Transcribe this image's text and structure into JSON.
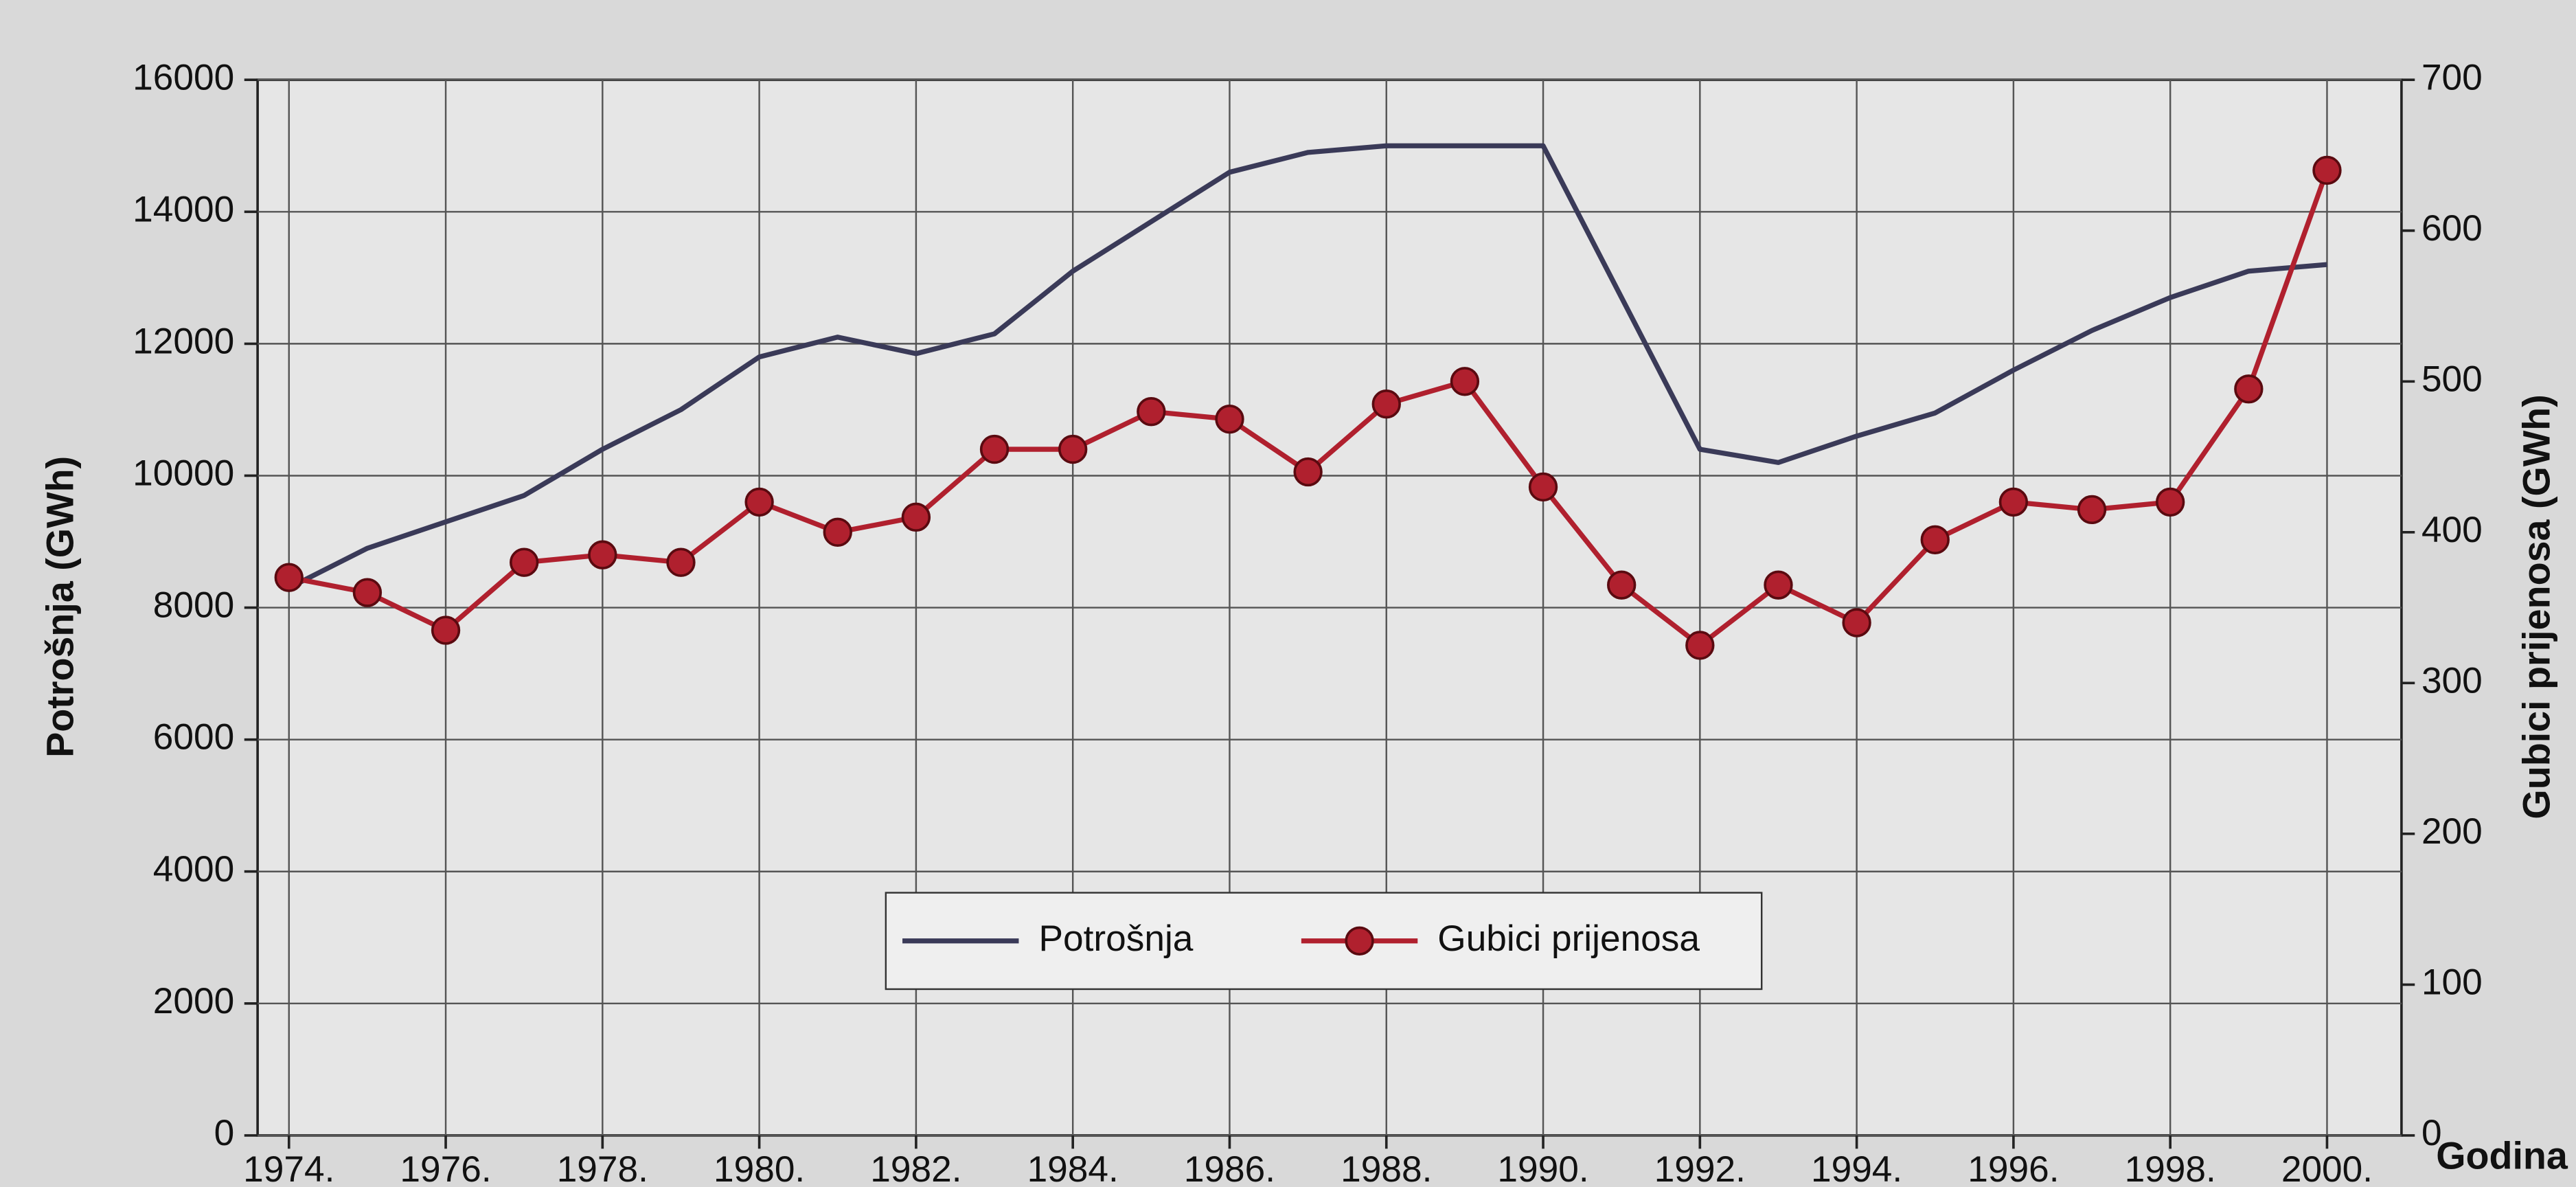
{
  "chart_data": {
    "type": "line",
    "x": [
      1974,
      1975,
      1976,
      1977,
      1978,
      1979,
      1980,
      1981,
      1982,
      1983,
      1984,
      1985,
      1986,
      1987,
      1988,
      1989,
      1990,
      1991,
      1992,
      1993,
      1994,
      1995,
      1996,
      1997,
      1998,
      1999,
      2000
    ],
    "series": [
      {
        "name": "Potrošnja",
        "color": "#3a3a58",
        "marker": false,
        "values": [
          8300,
          8900,
          9300,
          9700,
          10400,
          11000,
          11800,
          12100,
          11850,
          12150,
          13100,
          13850,
          14600,
          14900,
          15000,
          15000,
          15000,
          12700,
          10400,
          10200,
          10600,
          10950,
          11600,
          12200,
          12700,
          13100,
          13200
        ]
      },
      {
        "name": "Gubici prijenosa",
        "color": "#b0202e",
        "marker": true,
        "axis": "y2",
        "values": [
          370,
          360,
          335,
          380,
          385,
          380,
          420,
          400,
          410,
          455,
          455,
          480,
          475,
          440,
          485,
          500,
          430,
          365,
          325,
          365,
          340,
          395,
          420,
          415,
          420,
          495,
          640
        ]
      }
    ],
    "xlabel": "Godina",
    "ylabel": "Potrošnja (GWh)",
    "y2label": "Gubici prijenosa (GWh)",
    "xlim": [
      1973.6,
      2000.95
    ],
    "xticks": [
      {
        "value": 1974,
        "label": "1974."
      },
      {
        "value": 1976,
        "label": "1976."
      },
      {
        "value": 1978,
        "label": "1978."
      },
      {
        "value": 1980,
        "label": "1980."
      },
      {
        "value": 1982,
        "label": "1982."
      },
      {
        "value": 1984,
        "label": "1984."
      },
      {
        "value": 1986,
        "label": "1986."
      },
      {
        "value": 1988,
        "label": "1988."
      },
      {
        "value": 1990,
        "label": "1990."
      },
      {
        "value": 1992,
        "label": "1992."
      },
      {
        "value": 1994,
        "label": "1994."
      },
      {
        "value": 1996,
        "label": "1996."
      },
      {
        "value": 1998,
        "label": "1998."
      },
      {
        "value": 2000,
        "label": "2000."
      }
    ],
    "ylim": [
      0,
      16000
    ],
    "yticks": [
      0,
      2000,
      4000,
      6000,
      8000,
      10000,
      12000,
      14000,
      16000
    ],
    "y2lim": [
      0,
      700
    ],
    "y2ticks": [
      0,
      100,
      200,
      300,
      400,
      500,
      600,
      700
    ],
    "grid": true,
    "legend": "lower center"
  }
}
